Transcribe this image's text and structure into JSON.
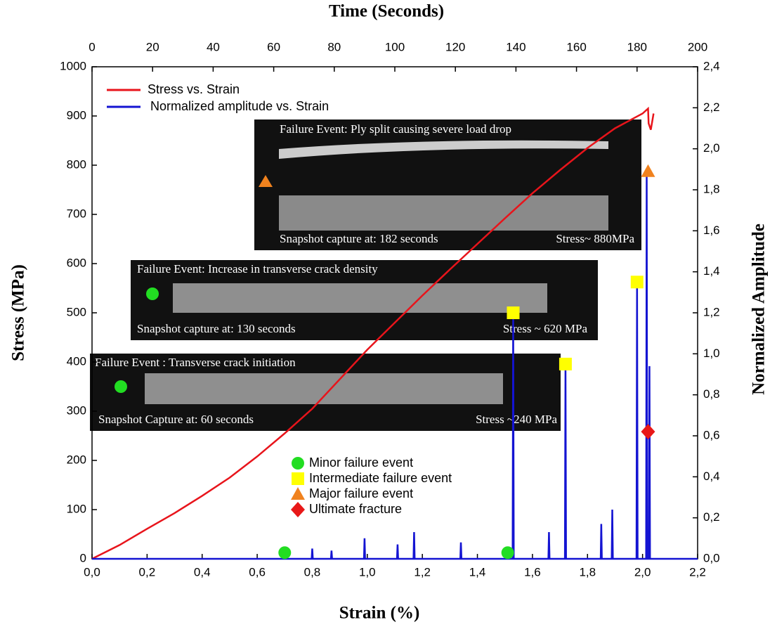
{
  "chart_data": {
    "type": "line",
    "title": "Time (Seconds)",
    "x_label": "Strain (%)",
    "y_label": "Stress (MPa)",
    "y2_label": "Normalized Amplitude",
    "xlim": [
      0,
      2.2
    ],
    "xticks": [
      {
        "value": 0,
        "label": "0,0"
      },
      {
        "value": 0.2,
        "label": "0,2"
      },
      {
        "value": 0.4,
        "label": "0,4"
      },
      {
        "value": 0.6,
        "label": "0,6"
      },
      {
        "value": 0.8,
        "label": "0,8"
      },
      {
        "value": 1.0,
        "label": "1,0"
      },
      {
        "value": 1.2,
        "label": "1,2"
      },
      {
        "value": 1.4,
        "label": "1,4"
      },
      {
        "value": 1.6,
        "label": "1,6"
      },
      {
        "value": 1.8,
        "label": "1,8"
      },
      {
        "value": 2.0,
        "label": "2,0"
      },
      {
        "value": 2.2,
        "label": "2,2"
      }
    ],
    "x2lim": [
      0,
      200
    ],
    "x2ticks": [
      0,
      20,
      40,
      60,
      80,
      100,
      120,
      140,
      160,
      180,
      200
    ],
    "ylim": [
      0,
      1000
    ],
    "yticks": [
      0,
      100,
      200,
      300,
      400,
      500,
      600,
      700,
      800,
      900,
      1000
    ],
    "y2lim": [
      0,
      2.4
    ],
    "y2ticks": [
      {
        "value": 0,
        "label": "0,0"
      },
      {
        "value": 0.2,
        "label": "0,2"
      },
      {
        "value": 0.4,
        "label": "0,4"
      },
      {
        "value": 0.6,
        "label": "0,6"
      },
      {
        "value": 0.8,
        "label": "0,8"
      },
      {
        "value": 1.0,
        "label": "1,0"
      },
      {
        "value": 1.2,
        "label": "1,2"
      },
      {
        "value": 1.4,
        "label": "1,4"
      },
      {
        "value": 1.6,
        "label": "1,6"
      },
      {
        "value": 1.8,
        "label": "1,8"
      },
      {
        "value": 2.0,
        "label": "2,0"
      },
      {
        "value": 2.2,
        "label": "2,2"
      },
      {
        "value": 2.4,
        "label": "2,4"
      }
    ],
    "legend": "upper left",
    "series": [
      {
        "name": "Stress vs. Strain",
        "color": "#e8141b",
        "x": [
          0,
          0.1,
          0.2,
          0.3,
          0.4,
          0.5,
          0.6,
          0.7,
          0.8,
          0.9,
          1.0,
          1.1,
          1.2,
          1.3,
          1.4,
          1.5,
          1.6,
          1.7,
          1.8,
          1.9,
          2.0,
          2.02,
          2.022,
          2.03,
          2.04
        ],
        "values": [
          0,
          28,
          61,
          93,
          128,
          165,
          208,
          255,
          305,
          365,
          425,
          480,
          535,
          588,
          640,
          692,
          743,
          790,
          835,
          875,
          905,
          915,
          885,
          872,
          905
        ]
      },
      {
        "name": "Normalized amplitude vs. Strain",
        "color": "#1414d2",
        "axis": "y2",
        "x": [
          0,
          0.798,
          0.8,
          0.802,
          0.868,
          0.87,
          0.872,
          0.988,
          0.99,
          0.992,
          1.108,
          1.11,
          1.112,
          1.168,
          1.17,
          1.172,
          1.338,
          1.34,
          1.342,
          1.528,
          1.53,
          1.532,
          1.658,
          1.66,
          1.662,
          1.718,
          1.72,
          1.722,
          1.848,
          1.85,
          1.852,
          1.888,
          1.89,
          1.892,
          1.978,
          1.98,
          1.982,
          2.013,
          2.015,
          2.017,
          2.023,
          2.025,
          2.027,
          2.2
        ],
        "values": [
          0,
          0,
          0.05,
          0,
          0,
          0.04,
          0,
          0,
          0.1,
          0,
          0,
          0.07,
          0,
          0,
          0.13,
          0,
          0,
          0.08,
          0,
          0,
          1.2,
          0,
          0,
          0.13,
          0,
          0,
          0.95,
          0,
          0,
          0.17,
          0,
          0,
          0.24,
          0,
          0,
          1.35,
          0,
          0,
          1.88,
          0,
          0,
          0.94,
          0,
          0
        ]
      },
      {
        "name": "Minor failure event",
        "color": "#22dd22",
        "axis": "y2",
        "marker": "circle",
        "x": [
          0.7,
          1.51
        ],
        "values": [
          0.03,
          0.03
        ]
      },
      {
        "name": "Intermediate failure event",
        "color": "#ffff00",
        "axis": "y2",
        "marker": "square",
        "x": [
          1.53,
          1.72,
          1.98
        ],
        "values": [
          1.2,
          0.95,
          1.35
        ]
      },
      {
        "name": "Major failure event",
        "color": "#f0821e",
        "axis": "y2",
        "marker": "triangle",
        "x": [
          2.02
        ],
        "values": [
          1.89
        ]
      },
      {
        "name": "Ultimate fracture",
        "color": "#e81818",
        "axis": "y2",
        "marker": "diamond",
        "x": [
          2.02
        ],
        "values": [
          0.62
        ]
      }
    ],
    "annotations": [
      {
        "title": "Failure Event: Ply split causing severe load drop",
        "capture": "Snapshot capture at: 182 seconds",
        "stress": "Stress~ 880MPa"
      },
      {
        "title": "Failure Event: Increase in transverse crack density",
        "capture": "Snapshot capture at: 130 seconds",
        "stress": "Stress ~ 620 MPa"
      },
      {
        "title": "Failure Event : Transverse crack initiation",
        "capture": "Snapshot Capture at: 60 seconds",
        "stress": "Stress ~240 MPa"
      }
    ]
  }
}
